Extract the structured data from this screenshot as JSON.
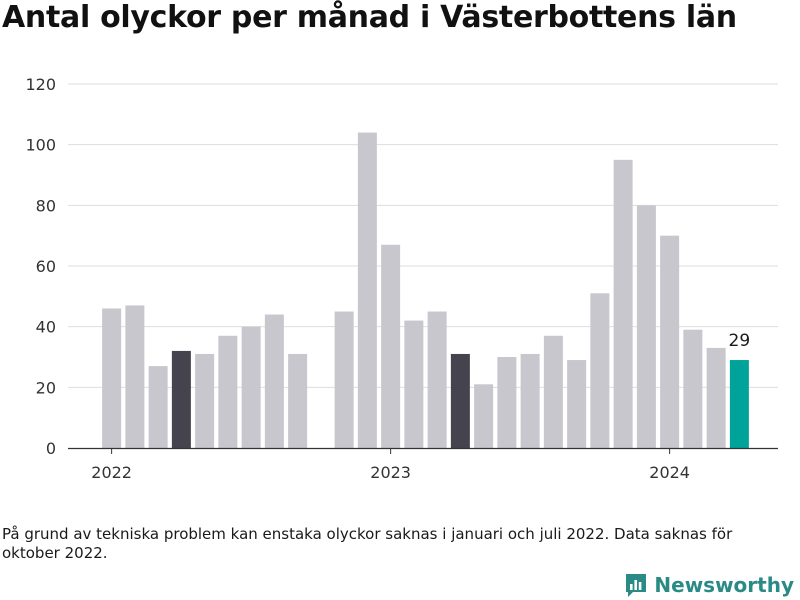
{
  "title": "Antal olyckor per månad i Västerbottens län",
  "footnote": "På grund av tekniska problem kan enstaka olyckor saknas i januari och juli 2022. Data saknas för oktober 2022.",
  "brand": {
    "name": "Newsworthy",
    "icon": "newsworthy-logo-icon"
  },
  "colors": {
    "default": "#c8c7ce",
    "highlight": "#45444e",
    "latest": "#00a39a",
    "grid": "#dddddd",
    "axis": "#333333"
  },
  "chart_data": {
    "type": "bar",
    "title": "Antal olyckor per månad i Västerbottens län",
    "xlabel": "",
    "ylabel": "",
    "ylim": [
      0,
      120
    ],
    "yticks": [
      0,
      20,
      40,
      60,
      80,
      100,
      120
    ],
    "xticks": [
      {
        "label": "2022",
        "category": "2022-01"
      },
      {
        "label": "2023",
        "category": "2023-01"
      },
      {
        "label": "2024",
        "category": "2024-01"
      }
    ],
    "grid": true,
    "categories": [
      "2022-01",
      "2022-02",
      "2022-03",
      "2022-04",
      "2022-05",
      "2022-06",
      "2022-07",
      "2022-08",
      "2022-09",
      "2022-10",
      "2022-11",
      "2022-12",
      "2023-01",
      "2023-02",
      "2023-03",
      "2023-04",
      "2023-05",
      "2023-06",
      "2023-07",
      "2023-08",
      "2023-09",
      "2023-10",
      "2023-11",
      "2023-12",
      "2024-01",
      "2024-02",
      "2024-03",
      "2024-04"
    ],
    "values": [
      46,
      47,
      27,
      32,
      31,
      37,
      40,
      44,
      31,
      null,
      45,
      104,
      67,
      42,
      45,
      31,
      21,
      30,
      31,
      37,
      29,
      51,
      95,
      80,
      70,
      39,
      33,
      29
    ],
    "highlight": [
      "2022-04",
      "2023-04"
    ],
    "latest": "2024-04",
    "annotations": [
      {
        "category": "2024-04",
        "text": "29"
      }
    ]
  }
}
